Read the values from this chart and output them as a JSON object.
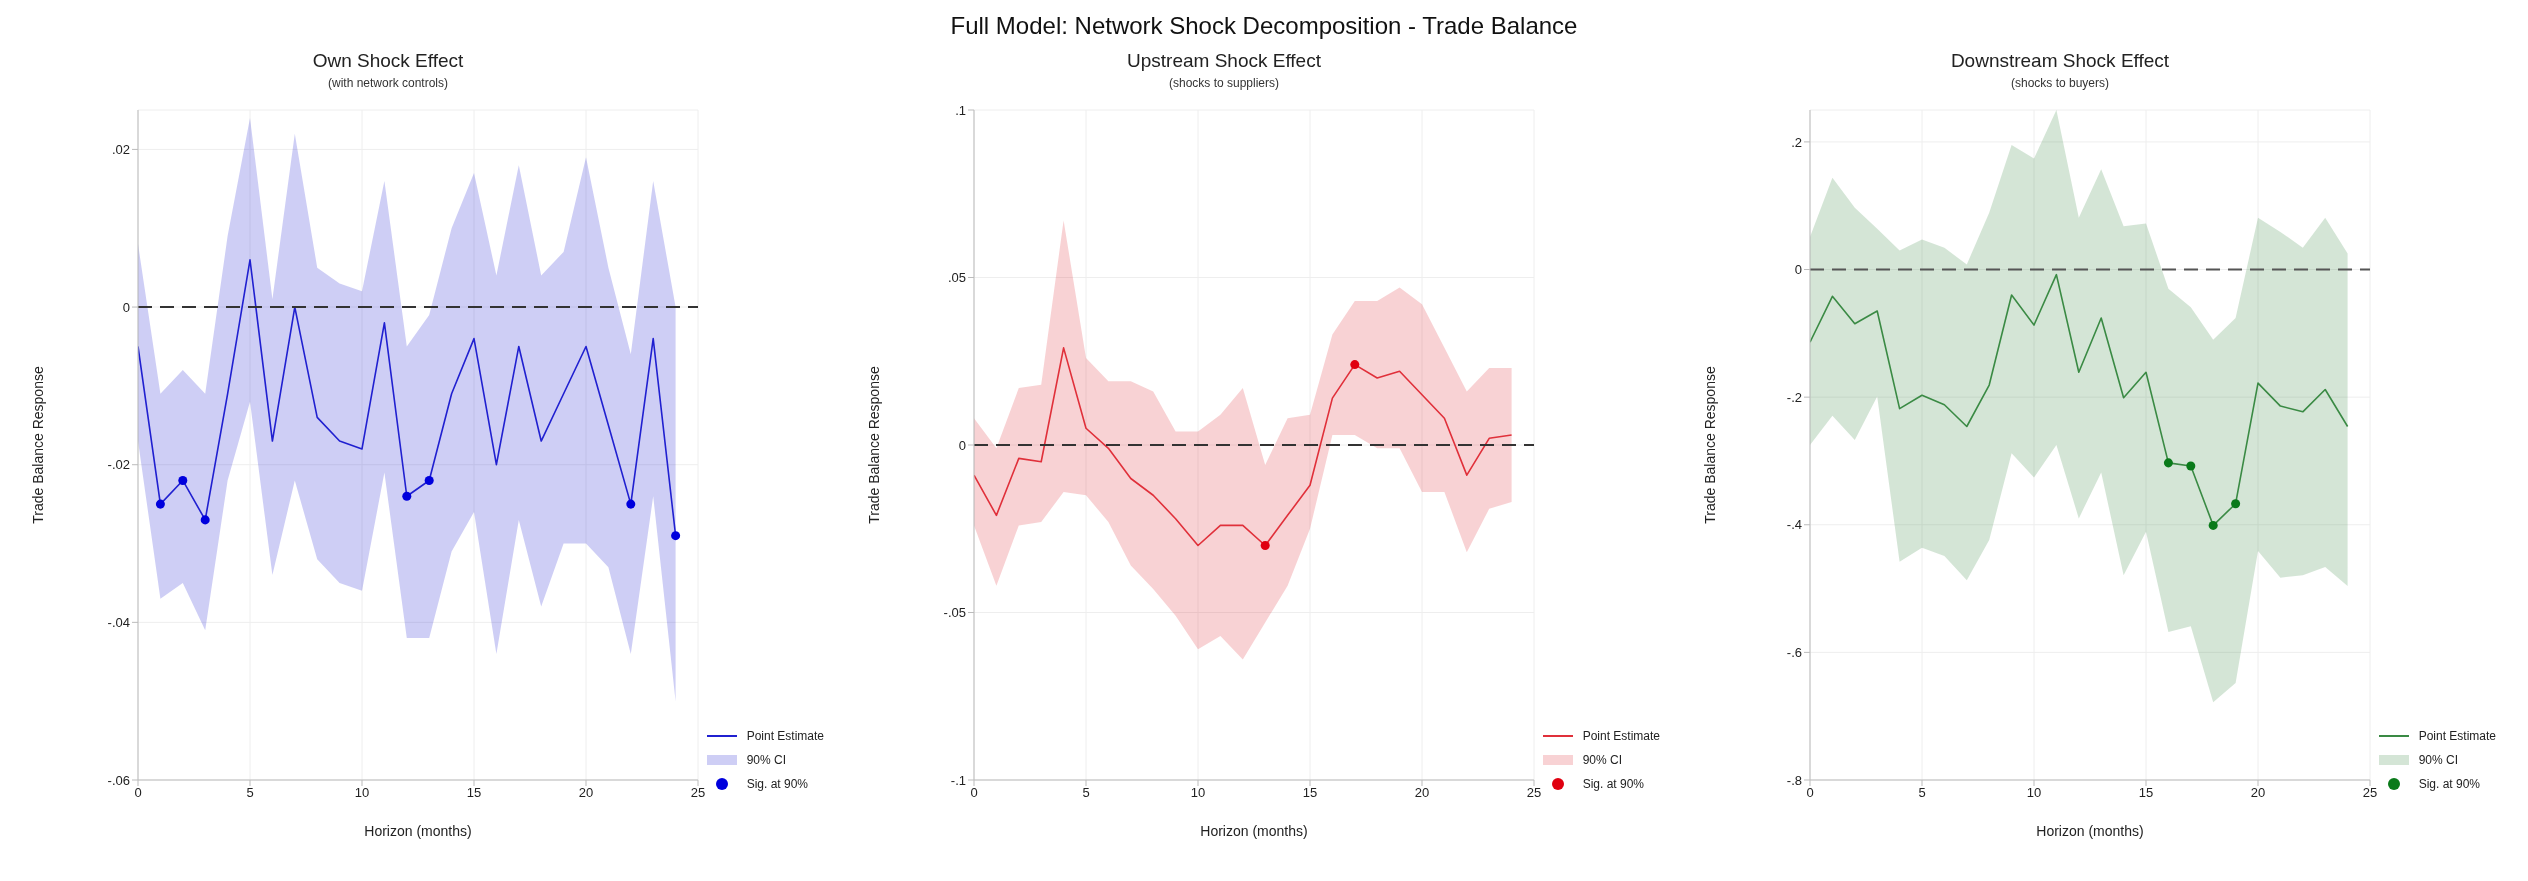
{
  "chart_data": [
    {
      "type": "line",
      "title": "Own Shock Effect",
      "subtitle": "(with network controls)",
      "xlabel": "Horizon (months)",
      "ylabel": "Trade Balance Response",
      "annotations": [
        "Full Model: Network Shock Decomposition - Trade Balance",
        "90% CI"
      ],
      "x": [
        0,
        1,
        2,
        3,
        4,
        5,
        6,
        7,
        8,
        9,
        10,
        11,
        12,
        13,
        14,
        15,
        16,
        17,
        18,
        19,
        20,
        21,
        22,
        23,
        24
      ],
      "series": [
        {
          "name": "Point Estimate",
          "color": "#2020d0",
          "marker": "none",
          "lower": [
            -0.017,
            -0.037,
            -0.035,
            -0.041,
            -0.022,
            -0.012,
            -0.034,
            -0.022,
            -0.032,
            -0.035,
            -0.036,
            -0.021,
            -0.042,
            -0.042,
            -0.031,
            -0.026,
            -0.044,
            -0.027,
            -0.038,
            -0.03,
            -0.03,
            -0.033,
            -0.044,
            -0.024,
            -0.05
          ],
          "upper": [
            0.008,
            -0.011,
            -0.008,
            -0.011,
            0.009,
            0.024,
            0.001,
            0.022,
            0.005,
            0.003,
            0.002,
            0.016,
            -0.005,
            -0.001,
            0.01,
            0.017,
            0.004,
            0.018,
            0.004,
            0.007,
            0.019,
            0.005,
            -0.006,
            0.016,
            0.0
          ],
          "values": [
            -0.005,
            -0.025,
            -0.022,
            -0.027,
            -0.011,
            0.006,
            -0.017,
            0.0,
            -0.014,
            -0.017,
            -0.018,
            -0.002,
            -0.024,
            -0.022,
            -0.011,
            -0.004,
            -0.02,
            -0.005,
            -0.017,
            -0.011,
            -0.005,
            -0.015,
            -0.025,
            -0.004,
            -0.029
          ]
        },
        {
          "name": "Sig. at 90%",
          "type": "scatter",
          "color": "#0000dd",
          "marker": "circle",
          "x": [
            1,
            2,
            3,
            12,
            13,
            22,
            24
          ],
          "values": [
            -0.025,
            -0.022,
            -0.027,
            -0.024,
            -0.022,
            -0.025,
            -0.029
          ]
        }
      ],
      "ref_lines": [
        {
          "axis": "y",
          "value": 0,
          "color": "#333333",
          "line_style": "dashed"
        }
      ],
      "xlim": [
        0,
        25
      ],
      "xticks": [
        0,
        5,
        10,
        15,
        20,
        25
      ],
      "ylim": [
        -0.06,
        0.025
      ],
      "yticks": [
        {
          "value": 0.02,
          "label": ".02"
        },
        {
          "value": 0,
          "label": "0"
        },
        {
          "value": -0.02,
          "label": "-.02"
        },
        {
          "value": -0.04,
          "label": "-.04"
        },
        {
          "value": -0.06,
          "label": "-.06"
        }
      ],
      "grid": true,
      "legend": "bottom right"
    },
    {
      "type": "line",
      "title": "Upstream Shock Effect",
      "subtitle": "(shocks to suppliers)",
      "annotations": [
        "90% CI"
      ],
      "xlabel": "Horizon (months)",
      "ylabel": "Trade Balance Response",
      "x": [
        0,
        1,
        2,
        3,
        4,
        5,
        6,
        7,
        8,
        9,
        10,
        11,
        12,
        13,
        14,
        15,
        16,
        17,
        18,
        19,
        20,
        21,
        22,
        23,
        24
      ],
      "series": [
        {
          "name": "Point Estimate",
          "color": "#e0303a",
          "marker": "none",
          "lower": [
            -0.024,
            -0.042,
            -0.024,
            -0.023,
            -0.014,
            -0.015,
            -0.023,
            -0.036,
            -0.043,
            -0.051,
            -0.061,
            -0.057,
            -0.064,
            -0.053,
            -0.042,
            -0.025,
            0.003,
            0.003,
            -0.001,
            -0.001,
            -0.014,
            -0.014,
            -0.032,
            -0.019,
            -0.017
          ],
          "upper": [
            0.008,
            -0.001,
            0.017,
            0.018,
            0.067,
            0.026,
            0.019,
            0.019,
            0.016,
            0.004,
            0.004,
            0.009,
            0.017,
            -0.006,
            0.008,
            0.009,
            0.033,
            0.043,
            0.043,
            0.047,
            0.042,
            0.029,
            0.016,
            0.023,
            0.023
          ],
          "values": [
            -0.009,
            -0.021,
            -0.004,
            -0.005,
            0.029,
            0.005,
            -0.001,
            -0.01,
            -0.015,
            -0.022,
            -0.03,
            -0.024,
            -0.024,
            -0.03,
            -0.021,
            -0.012,
            0.014,
            0.024,
            0.02,
            0.022,
            0.015,
            0.008,
            -0.009,
            0.002,
            0.003
          ]
        },
        {
          "name": "Sig. at 90%",
          "type": "scatter",
          "color": "#e00010",
          "marker": "circle",
          "x": [
            13,
            17
          ],
          "values": [
            -0.03,
            0.024
          ]
        }
      ],
      "ref_lines": [
        {
          "axis": "y",
          "value": 0,
          "color": "#333333",
          "line_style": "dashed"
        }
      ],
      "xlim": [
        0,
        25
      ],
      "xticks": [
        0,
        5,
        10,
        15,
        20,
        25
      ],
      "ylim": [
        -0.1,
        0.1
      ],
      "yticks": [
        {
          "value": 0.1,
          "label": ".1"
        },
        {
          "value": 0.05,
          "label": ".05"
        },
        {
          "value": 0,
          "label": "0"
        },
        {
          "value": -0.05,
          "label": "-.05"
        },
        {
          "value": -0.1,
          "label": "-.1"
        }
      ],
      "grid": true,
      "legend": "bottom right"
    },
    {
      "type": "line",
      "title": "Downstream Shock Effect",
      "subtitle": "(shocks to buyers)",
      "annotations": [
        "90% CI"
      ],
      "xlabel": "Horizon (months)",
      "ylabel": "Trade Balance Response",
      "x": [
        0,
        1,
        2,
        3,
        4,
        5,
        6,
        7,
        8,
        9,
        10,
        11,
        12,
        13,
        14,
        15,
        16,
        17,
        18,
        19,
        20,
        21,
        22,
        23,
        24
      ],
      "series": [
        {
          "name": "Point Estimate",
          "color": "#3a8a44",
          "marker": "none",
          "lower": [
            -0.275,
            -0.229,
            -0.267,
            -0.199,
            -0.458,
            -0.436,
            -0.449,
            -0.487,
            -0.424,
            -0.288,
            -0.326,
            -0.275,
            -0.39,
            -0.318,
            -0.479,
            -0.411,
            -0.568,
            -0.559,
            -0.678,
            -0.648,
            -0.441,
            -0.483,
            -0.479,
            -0.466,
            -0.496
          ],
          "upper": [
            0.051,
            0.144,
            0.097,
            0.064,
            0.03,
            0.047,
            0.034,
            0.008,
            0.089,
            0.195,
            0.174,
            0.25,
            0.081,
            0.157,
            0.068,
            0.072,
            -0.03,
            -0.059,
            -0.11,
            -0.076,
            0.081,
            0.059,
            0.034,
            0.081,
            0.025
          ],
          "values": [
            -0.114,
            -0.042,
            -0.085,
            -0.065,
            -0.218,
            -0.197,
            -0.212,
            -0.246,
            -0.181,
            -0.04,
            -0.087,
            -0.008,
            -0.161,
            -0.076,
            -0.201,
            -0.161,
            -0.303,
            -0.308,
            -0.401,
            -0.367,
            -0.178,
            -0.214,
            -0.223,
            -0.188,
            -0.246
          ]
        },
        {
          "name": "Sig. at 90%",
          "type": "scatter",
          "color": "#0a7a1a",
          "marker": "circle",
          "x": [
            16,
            17,
            18,
            19
          ],
          "values": [
            -0.303,
            -0.308,
            -0.401,
            -0.367
          ]
        }
      ],
      "ref_lines": [
        {
          "axis": "y",
          "value": 0,
          "color": "#555555",
          "line_style": "dashed"
        }
      ],
      "xlim": [
        0,
        25
      ],
      "xticks": [
        0,
        5,
        10,
        15,
        20,
        25
      ],
      "ylim": [
        -0.8,
        0.25
      ],
      "yticks": [
        {
          "value": 0.2,
          "label": ".2"
        },
        {
          "value": 0,
          "label": "0"
        },
        {
          "value": -0.2,
          "label": "-.2"
        },
        {
          "value": -0.4,
          "label": "-.4"
        },
        {
          "value": -0.6,
          "label": "-.6"
        },
        {
          "value": -0.8,
          "label": "-.8"
        }
      ],
      "grid": true,
      "legend": "bottom right"
    }
  ]
}
